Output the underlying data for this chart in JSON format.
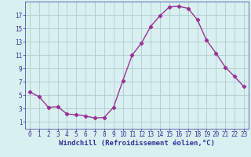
{
  "x": [
    0,
    1,
    2,
    3,
    4,
    5,
    6,
    7,
    8,
    9,
    10,
    11,
    12,
    13,
    14,
    15,
    16,
    17,
    18,
    19,
    20,
    21,
    22,
    23
  ],
  "y": [
    5.5,
    4.8,
    3.2,
    3.3,
    2.2,
    2.1,
    1.9,
    1.6,
    1.7,
    3.2,
    7.2,
    11.0,
    12.8,
    15.3,
    16.9,
    18.2,
    18.3,
    18.0,
    16.3,
    13.2,
    11.3,
    9.2,
    7.8,
    6.3
  ],
  "line_color": "#993399",
  "marker": "D",
  "marker_size": 2.2,
  "bg_color": "#d9f0f0",
  "grid_color": "#b0cccc",
  "xlabel": "Windchill (Refroidissement éolien,°C)",
  "xlabel_color": "#333399",
  "tick_color": "#333399",
  "ylim": [
    0,
    19
  ],
  "xlim": [
    -0.5,
    23.5
  ],
  "yticks": [
    1,
    3,
    5,
    7,
    9,
    11,
    13,
    15,
    17
  ],
  "xticks": [
    0,
    1,
    2,
    3,
    4,
    5,
    6,
    7,
    8,
    9,
    10,
    11,
    12,
    13,
    14,
    15,
    16,
    17,
    18,
    19,
    20,
    21,
    22,
    23
  ],
  "font_size_label": 6.5,
  "font_size_tick": 5.5,
  "line_width": 1.0
}
